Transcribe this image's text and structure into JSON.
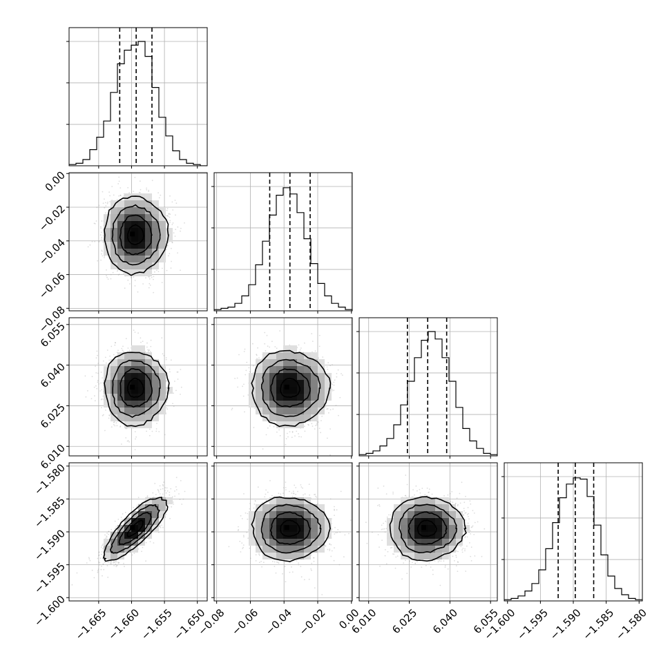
{
  "chart_data": {
    "type": "corner",
    "parameters": [
      {
        "range": [
          -1.6695,
          -1.6485
        ],
        "ticks": [
          -1.665,
          -1.66,
          -1.655,
          -1.65
        ],
        "tick_labels": [
          "−1.665",
          "−1.660",
          "−1.655",
          "−1.650"
        ],
        "mean": -1.6594,
        "sd": 0.0024,
        "quantiles": [
          -1.6618,
          -1.6593,
          -1.6569
        ],
        "hist": [
          0.01,
          0.02,
          0.05,
          0.13,
          0.23,
          0.36,
          0.59,
          0.82,
          0.93,
          0.97,
          1.0,
          0.88,
          0.63,
          0.39,
          0.24,
          0.12,
          0.05,
          0.02,
          0.01,
          0.0
        ]
      },
      {
        "range": [
          -0.0815,
          0.0005
        ],
        "ticks": [
          -0.08,
          -0.06,
          -0.04,
          -0.02,
          0.0
        ],
        "tick_labels": [
          "−0.08",
          "−0.06",
          "−0.04",
          "−0.02",
          "0.00"
        ],
        "mean": -0.0365,
        "sd": 0.0115,
        "quantiles": [
          -0.0485,
          -0.0365,
          -0.0245
        ],
        "hist": [
          0.01,
          0.02,
          0.03,
          0.06,
          0.12,
          0.21,
          0.37,
          0.56,
          0.77,
          0.93,
          0.99,
          0.94,
          0.79,
          0.58,
          0.38,
          0.22,
          0.12,
          0.06,
          0.03,
          0.01
        ]
      },
      {
        "range": [
          6.0065,
          6.0575
        ],
        "ticks": [
          6.01,
          6.025,
          6.04,
          6.055
        ],
        "tick_labels": [
          "6.010",
          "6.025",
          "6.040",
          "6.055"
        ],
        "mean": 6.0315,
        "sd": 0.0069,
        "quantiles": [
          6.0243,
          6.0318,
          6.0388
        ],
        "hist": [
          0.01,
          0.02,
          0.04,
          0.08,
          0.14,
          0.25,
          0.41,
          0.6,
          0.79,
          0.93,
          1.0,
          0.94,
          0.79,
          0.6,
          0.39,
          0.22,
          0.12,
          0.06,
          0.02,
          0.01
        ]
      },
      {
        "range": [
          -1.6005,
          -1.5795
        ],
        "ticks": [
          -1.6,
          -1.595,
          -1.59,
          -1.585,
          -1.58
        ],
        "tick_labels": [
          "−1.600",
          "−1.595",
          "−1.590",
          "−1.585",
          "−1.580"
        ],
        "mean": -1.5895,
        "sd": 0.0024,
        "quantiles": [
          -1.5923,
          -1.5897,
          -1.5869
        ],
        "hist": [
          0.01,
          0.02,
          0.04,
          0.08,
          0.14,
          0.25,
          0.42,
          0.63,
          0.83,
          0.94,
          0.99,
          0.98,
          0.84,
          0.61,
          0.37,
          0.2,
          0.1,
          0.05,
          0.02,
          0.01
        ]
      }
    ],
    "correlations": {
      "1,0": 0.0,
      "2,0": 0.0,
      "3,0": 0.8,
      "2,1": 0.0,
      "3,1": 0.0,
      "3,2": 0.0
    },
    "contour_levels_sigma": [
      0.5,
      1.0,
      1.5,
      2.0
    ],
    "title": "",
    "grid": true
  }
}
